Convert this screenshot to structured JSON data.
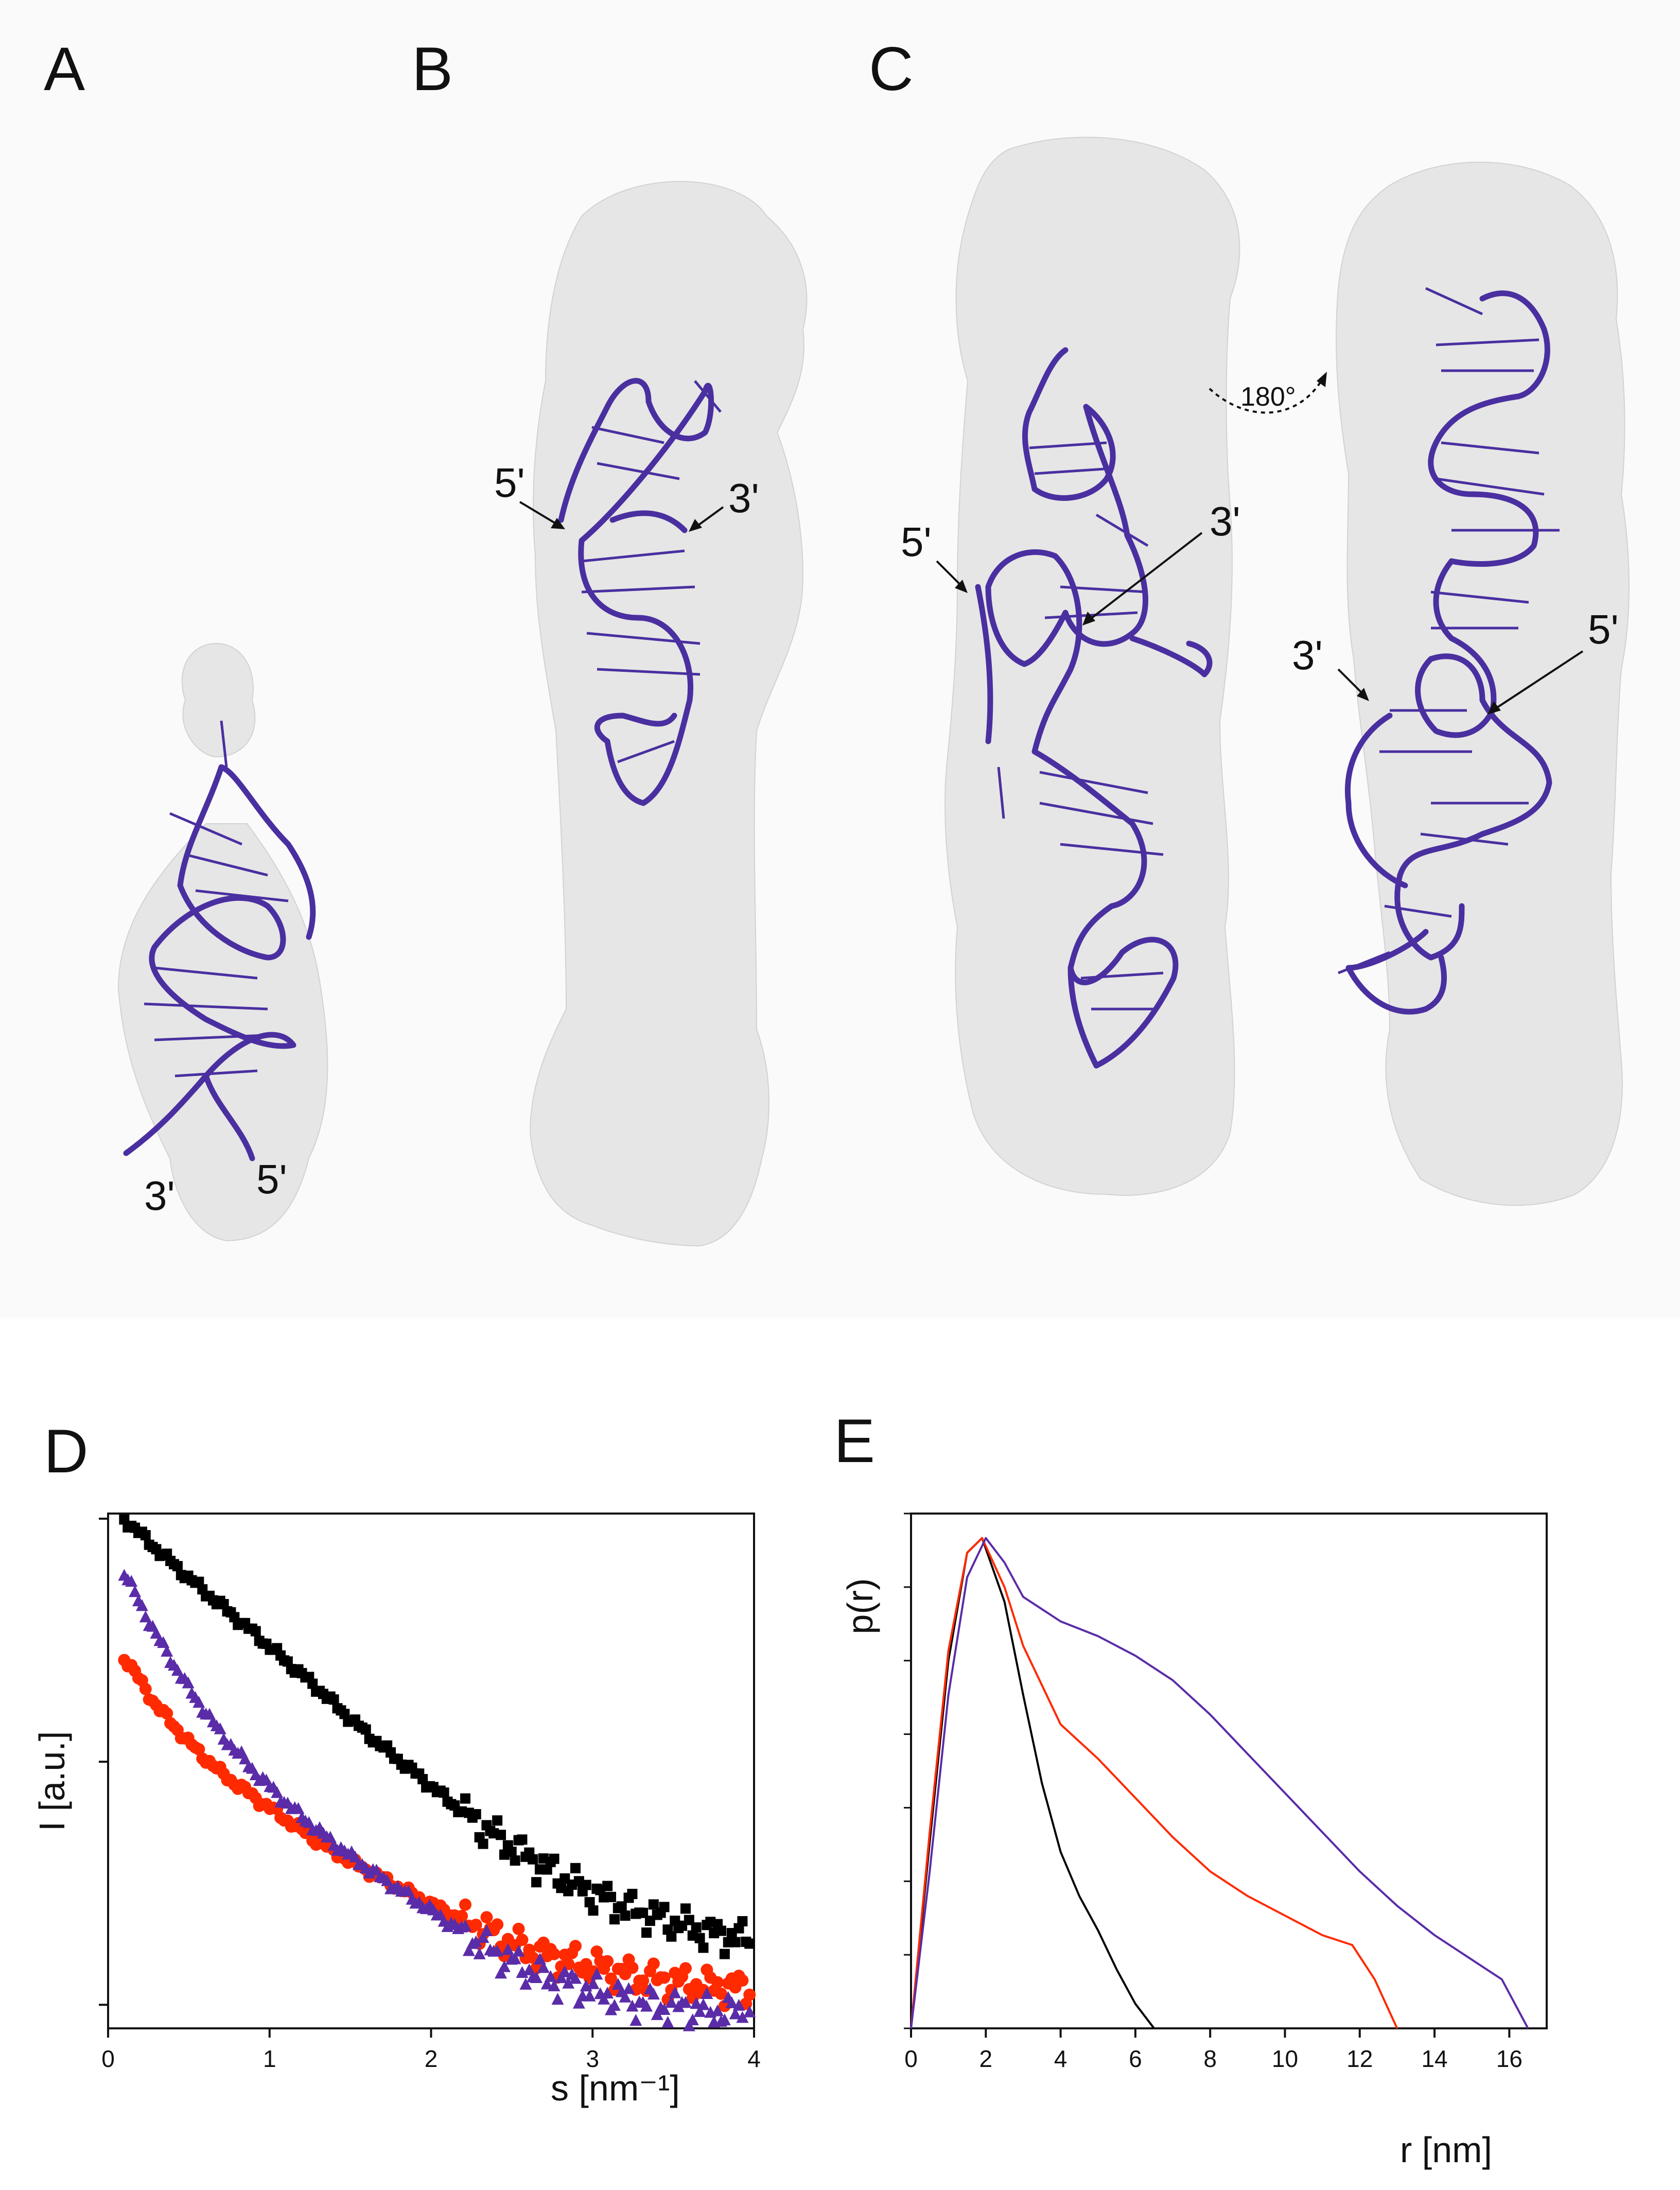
{
  "panels": {
    "a": {
      "letter": "A",
      "end3": "3'",
      "end5": "5'"
    },
    "b": {
      "letter": "B",
      "end5": "5'",
      "end3": "3'"
    },
    "c": {
      "letter": "C",
      "left_end5": "5'",
      "left_end3": "3'",
      "rotation_label": "180°",
      "right_end3": "3'",
      "right_end5": "5'"
    },
    "d": {
      "letter": "D"
    },
    "e": {
      "letter": "E"
    }
  },
  "colors": {
    "series_1": "#000000",
    "series_2": "#ff2a00",
    "series_3": "#5a2ca8",
    "rna": "#4a2fa0",
    "beads": "#e6e6e6"
  },
  "chart_data": [
    {
      "type": "scatter",
      "xlabel": "s [nm⁻¹]",
      "ylabel": "I [a.u.]",
      "xlim": [
        0,
        4
      ],
      "xticks": [
        "0",
        "1",
        "2",
        "3",
        "4"
      ],
      "yscale": "log",
      "ylim": [
        0.008,
        1.05
      ],
      "grid": false,
      "series": [
        {
          "color": "#000000",
          "marker": "square",
          "x": [
            0.1,
            0.3,
            0.5,
            0.7,
            0.9,
            1.1,
            1.3,
            1.5,
            1.7,
            1.9,
            2.1,
            2.3,
            2.5,
            2.7,
            2.9,
            3.1,
            3.3,
            3.5,
            3.7,
            3.9
          ],
          "y": [
            1.0,
            0.75,
            0.57,
            0.44,
            0.34,
            0.26,
            0.2,
            0.15,
            0.115,
            0.09,
            0.07,
            0.055,
            0.045,
            0.037,
            0.031,
            0.027,
            0.024,
            0.022,
            0.02,
            0.019
          ]
        },
        {
          "color": "#ff2a00",
          "marker": "circle",
          "x": [
            0.1,
            0.3,
            0.5,
            0.7,
            0.9,
            1.1,
            1.3,
            1.5,
            1.7,
            1.9,
            2.1,
            2.3,
            2.5,
            2.7,
            2.9,
            3.1,
            3.3,
            3.5,
            3.7,
            3.9
          ],
          "y": [
            0.27,
            0.17,
            0.12,
            0.09,
            0.072,
            0.058,
            0.047,
            0.039,
            0.033,
            0.028,
            0.024,
            0.021,
            0.018,
            0.016,
            0.015,
            0.014,
            0.013,
            0.0125,
            0.012,
            0.0118
          ]
        },
        {
          "color": "#5a2ca8",
          "marker": "triangle",
          "x": [
            0.1,
            0.3,
            0.5,
            0.7,
            0.9,
            1.1,
            1.3,
            1.5,
            1.7,
            1.9,
            2.1,
            2.3,
            2.5,
            2.7,
            2.9,
            3.1,
            3.3,
            3.5,
            3.7,
            3.9
          ],
          "y": [
            0.6,
            0.33,
            0.2,
            0.13,
            0.092,
            0.068,
            0.052,
            0.041,
            0.033,
            0.027,
            0.022,
            0.018,
            0.015,
            0.013,
            0.012,
            0.011,
            0.0102,
            0.0098,
            0.0095,
            0.0093
          ]
        }
      ]
    },
    {
      "type": "line",
      "xlabel": "r [nm]",
      "ylabel": "p(r)",
      "xlim": [
        0,
        17
      ],
      "xticks": [
        "0",
        "2",
        "4",
        "6",
        "8",
        "10",
        "12",
        "14",
        "16"
      ],
      "ylim": [
        0,
        1.05
      ],
      "grid": false,
      "series": [
        {
          "color": "#000000",
          "x": [
            0,
            0.5,
            1,
            1.5,
            1.9,
            2.5,
            3,
            3.5,
            4,
            4.5,
            5,
            5.5,
            6,
            6.5
          ],
          "y": [
            0,
            0.38,
            0.75,
            0.97,
            1.0,
            0.87,
            0.68,
            0.5,
            0.36,
            0.27,
            0.2,
            0.12,
            0.05,
            0.0
          ]
        },
        {
          "color": "#ff2a00",
          "x": [
            0,
            0.5,
            1,
            1.5,
            1.9,
            2.5,
            3,
            4,
            5,
            6,
            7,
            8,
            9,
            10,
            11,
            11.8,
            12.4,
            13
          ],
          "y": [
            0,
            0.4,
            0.77,
            0.97,
            1.0,
            0.9,
            0.78,
            0.62,
            0.55,
            0.47,
            0.39,
            0.32,
            0.27,
            0.23,
            0.19,
            0.17,
            0.1,
            0.0
          ]
        },
        {
          "color": "#5a2ca8",
          "x": [
            0,
            0.5,
            1,
            1.5,
            2,
            2.5,
            3,
            4,
            5,
            6,
            7,
            8,
            9,
            10,
            11,
            12,
            13,
            14,
            15,
            15.8,
            16.5
          ],
          "y": [
            0,
            0.32,
            0.68,
            0.92,
            1.0,
            0.95,
            0.88,
            0.83,
            0.8,
            0.76,
            0.71,
            0.64,
            0.56,
            0.48,
            0.4,
            0.32,
            0.25,
            0.19,
            0.14,
            0.1,
            0.0
          ]
        }
      ]
    }
  ]
}
